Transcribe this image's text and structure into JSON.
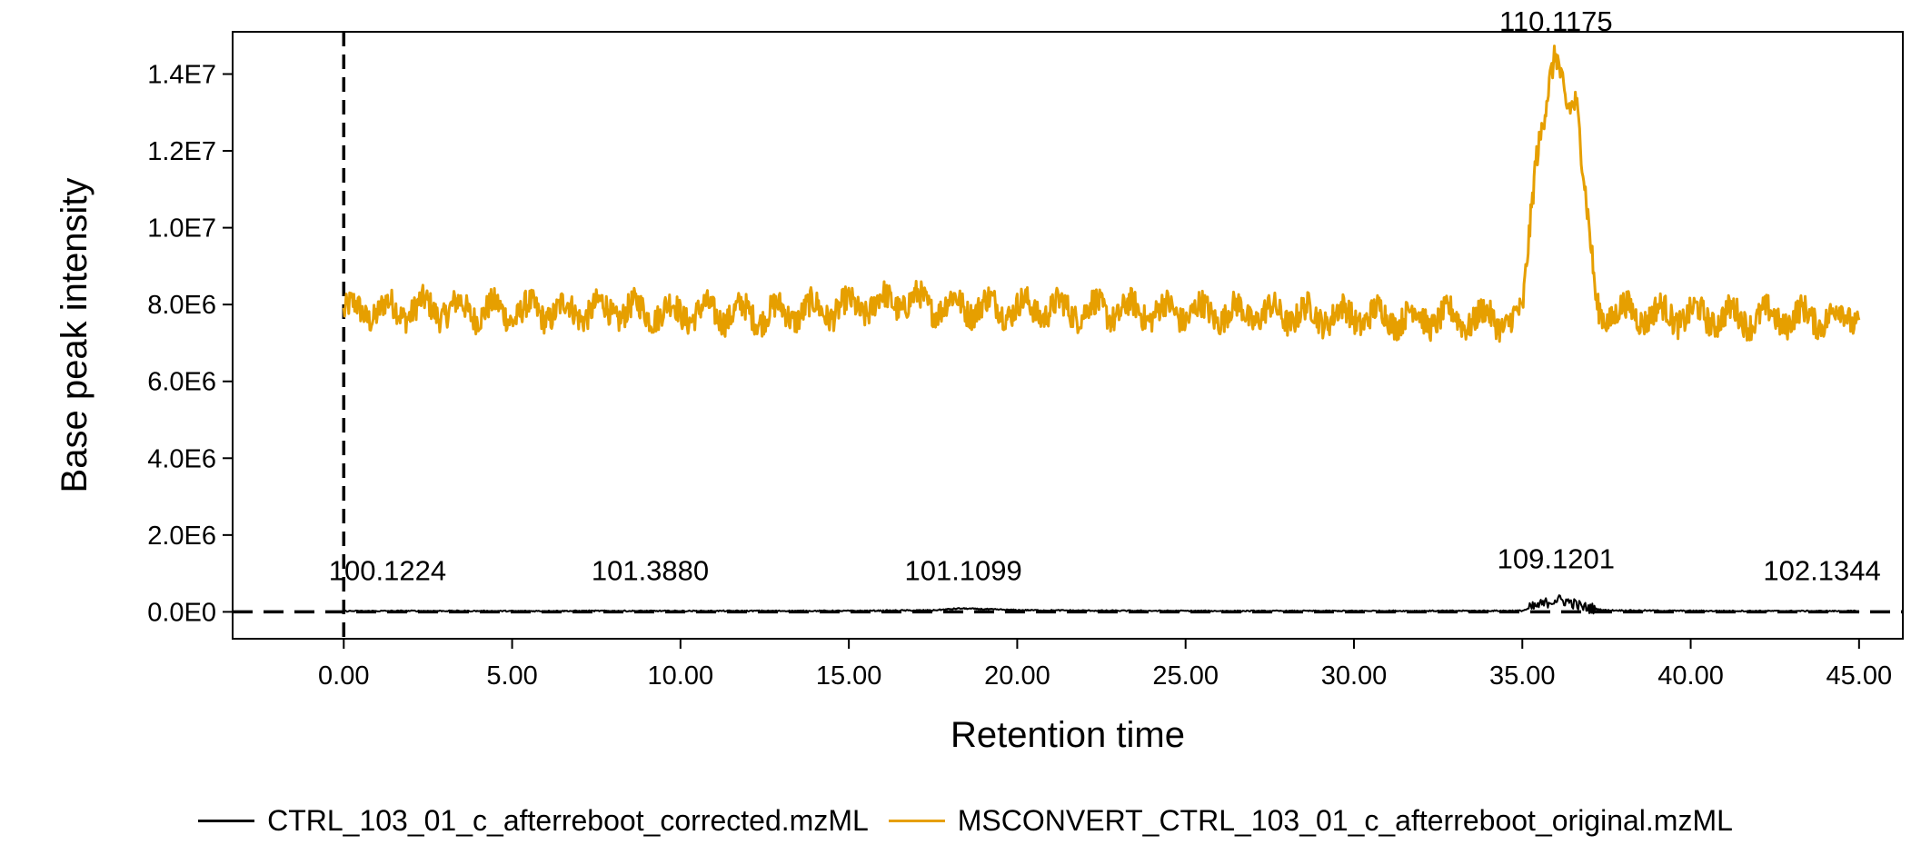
{
  "chart_data": {
    "type": "line",
    "title": "",
    "xlabel": "Retention time",
    "ylabel": "Base peak intensity",
    "xlim": [
      -3.3,
      46.3
    ],
    "ylim": [
      -700000,
      15100000
    ],
    "x_ticks": [
      0,
      5,
      10,
      15,
      20,
      25,
      30,
      35,
      40,
      45
    ],
    "x_tick_labels": [
      "0.00",
      "5.00",
      "10.00",
      "15.00",
      "20.00",
      "25.00",
      "30.00",
      "35.00",
      "40.00",
      "45.00"
    ],
    "y_ticks": [
      0,
      2000000,
      4000000,
      6000000,
      8000000,
      10000000,
      12000000,
      14000000
    ],
    "y_tick_labels": [
      "0.0E0",
      "2.0E6",
      "4.0E6",
      "6.0E6",
      "8.0E6",
      "1.0E7",
      "1.2E7",
      "1.4E7"
    ],
    "grid": false,
    "legend_position": "bottom",
    "reference_lines": [
      {
        "orientation": "vertical",
        "at": 0,
        "style": "dashed",
        "color": "#000000"
      },
      {
        "orientation": "horizontal",
        "at": 0,
        "style": "dashed",
        "color": "#000000"
      }
    ],
    "series": [
      {
        "name": "CTRL_103_01_c_afterreboot_corrected.mzML",
        "color": "#000000",
        "x": [
          0.0,
          2.5,
          5.0,
          7.5,
          10.0,
          12.5,
          15.0,
          17.5,
          18.3,
          20.0,
          22.5,
          25.0,
          27.5,
          30.0,
          32.5,
          35.0,
          35.6,
          36.0,
          36.4,
          36.8,
          37.5,
          40.0,
          42.5,
          45.0
        ],
        "y": [
          20000,
          25000,
          20000,
          25000,
          22000,
          25000,
          25000,
          40000,
          90000,
          45000,
          30000,
          25000,
          22000,
          25000,
          25000,
          30000,
          200000,
          320000,
          260000,
          120000,
          40000,
          25000,
          22000,
          20000
        ]
      },
      {
        "name": "MSCONVERT_CTRL_103_01_c_afterreboot_original.mzML",
        "color": "#E69F00",
        "x": [
          0.0,
          2.5,
          5.0,
          7.5,
          10.0,
          12.5,
          15.0,
          16.5,
          17.5,
          20.0,
          22.5,
          25.0,
          27.5,
          30.0,
          32.5,
          35.0,
          35.4,
          35.8,
          36.0,
          36.3,
          36.6,
          36.9,
          37.2,
          37.5,
          40.0,
          42.5,
          45.0
        ],
        "y": [
          7800000,
          7900000,
          7800000,
          7850000,
          7800000,
          7750000,
          7900000,
          8100000,
          8000000,
          7900000,
          7850000,
          7800000,
          7750000,
          7700000,
          7650000,
          7600000,
          12000000,
          13600000,
          14300000,
          13300000,
          13500000,
          10500000,
          7900000,
          7800000,
          7700000,
          7650000,
          7700000
        ]
      }
    ],
    "annotations": [
      {
        "text": "100.1224",
        "x": 1.3,
        "y": 0
      },
      {
        "text": "101.3880",
        "x": 9.1,
        "y": 0
      },
      {
        "text": "101.1099",
        "x": 18.4,
        "y": 0
      },
      {
        "text": "109.1201",
        "x": 36.0,
        "y": 300000
      },
      {
        "text": "110.1175",
        "x": 36.0,
        "y": 14300000
      },
      {
        "text": "102.1344",
        "x": 43.9,
        "y": 0
      }
    ]
  },
  "legend": {
    "items": [
      {
        "label": "CTRL_103_01_c_afterreboot_corrected.mzML",
        "color": "#000000"
      },
      {
        "label": "MSCONVERT_CTRL_103_01_c_afterreboot_original.mzML",
        "color": "#E69F00"
      }
    ]
  }
}
